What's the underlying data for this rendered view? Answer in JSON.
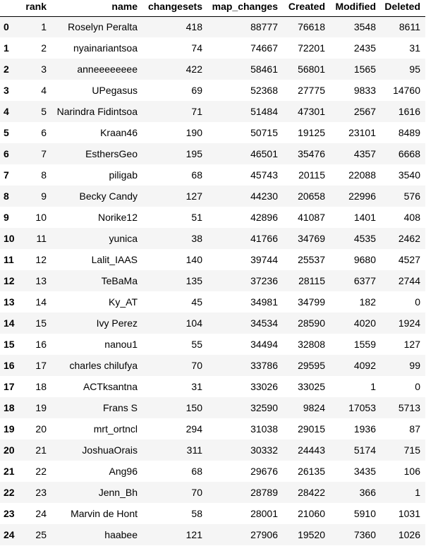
{
  "table": {
    "columns": [
      "",
      "rank",
      "name",
      "changesets",
      "map_changes",
      "Created",
      "Modified",
      "Deleted"
    ],
    "rows": [
      [
        "0",
        "1",
        "Roselyn Peralta",
        "418",
        "88777",
        "76618",
        "3548",
        "8611"
      ],
      [
        "1",
        "2",
        "nyainariantsoa",
        "74",
        "74667",
        "72201",
        "2435",
        "31"
      ],
      [
        "2",
        "3",
        "anneeeeeeee",
        "422",
        "58461",
        "56801",
        "1565",
        "95"
      ],
      [
        "3",
        "4",
        "UPegasus",
        "69",
        "52368",
        "27775",
        "9833",
        "14760"
      ],
      [
        "4",
        "5",
        "Narindra Fidintsoa",
        "71",
        "51484",
        "47301",
        "2567",
        "1616"
      ],
      [
        "5",
        "6",
        "Kraan46",
        "190",
        "50715",
        "19125",
        "23101",
        "8489"
      ],
      [
        "6",
        "7",
        "EsthersGeo",
        "195",
        "46501",
        "35476",
        "4357",
        "6668"
      ],
      [
        "7",
        "8",
        "piligab",
        "68",
        "45743",
        "20115",
        "22088",
        "3540"
      ],
      [
        "8",
        "9",
        "Becky Candy",
        "127",
        "44230",
        "20658",
        "22996",
        "576"
      ],
      [
        "9",
        "10",
        "Norike12",
        "51",
        "42896",
        "41087",
        "1401",
        "408"
      ],
      [
        "10",
        "11",
        "yunica",
        "38",
        "41766",
        "34769",
        "4535",
        "2462"
      ],
      [
        "11",
        "12",
        "Lalit_IAAS",
        "140",
        "39744",
        "25537",
        "9680",
        "4527"
      ],
      [
        "12",
        "13",
        "TeBaMa",
        "135",
        "37236",
        "28115",
        "6377",
        "2744"
      ],
      [
        "13",
        "14",
        "Ky_AT",
        "45",
        "34981",
        "34799",
        "182",
        "0"
      ],
      [
        "14",
        "15",
        "Ivy Perez",
        "104",
        "34534",
        "28590",
        "4020",
        "1924"
      ],
      [
        "15",
        "16",
        "nanou1",
        "55",
        "34494",
        "32808",
        "1559",
        "127"
      ],
      [
        "16",
        "17",
        "charles chilufya",
        "70",
        "33786",
        "29595",
        "4092",
        "99"
      ],
      [
        "17",
        "18",
        "ACTksantna",
        "31",
        "33026",
        "33025",
        "1",
        "0"
      ],
      [
        "18",
        "19",
        "Frans S",
        "150",
        "32590",
        "9824",
        "17053",
        "5713"
      ],
      [
        "19",
        "20",
        "mrt_ortncl",
        "294",
        "31038",
        "29015",
        "1936",
        "87"
      ],
      [
        "20",
        "21",
        "JoshuaOrais",
        "311",
        "30332",
        "24443",
        "5174",
        "715"
      ],
      [
        "21",
        "22",
        "Ang96",
        "68",
        "29676",
        "26135",
        "3435",
        "106"
      ],
      [
        "22",
        "23",
        "Jenn_Bh",
        "70",
        "28789",
        "28422",
        "366",
        "1"
      ],
      [
        "23",
        "24",
        "Marvin de Hont",
        "58",
        "28001",
        "21060",
        "5910",
        "1031"
      ],
      [
        "24",
        "25",
        "haabee",
        "121",
        "27906",
        "19520",
        "7360",
        "1026"
      ]
    ]
  }
}
